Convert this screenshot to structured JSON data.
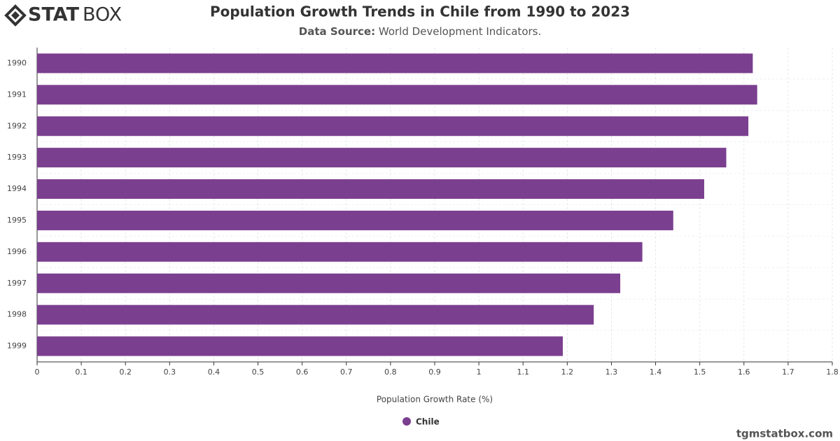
{
  "logo": {
    "bold": "STAT",
    "light": "BOX"
  },
  "footer": "tgmstatbox.com",
  "chart_data": {
    "type": "bar",
    "orientation": "horizontal",
    "title": "Population Growth Trends in Chile from 1990 to 2023",
    "subtitle": {
      "label": "Data Source:",
      "text": "World Development Indicators."
    },
    "x_label": "Population Growth Rate (%)",
    "categories": [
      "1990",
      "1991",
      "1992",
      "1993",
      "1994",
      "1995",
      "1996",
      "1997",
      "1998",
      "1999"
    ],
    "series": [
      {
        "name": "Chile",
        "color": "#7b3f8f",
        "values": [
          1.62,
          1.63,
          1.61,
          1.56,
          1.51,
          1.44,
          1.37,
          1.32,
          1.26,
          1.19
        ]
      }
    ],
    "xlim": [
      0,
      1.8
    ],
    "xticks": [
      0,
      0.1,
      0.2,
      0.3,
      0.4,
      0.5,
      0.6,
      0.7,
      0.8,
      0.9,
      1,
      1.1,
      1.2,
      1.3,
      1.4,
      1.5,
      1.6,
      1.7,
      1.8
    ],
    "grid": true
  }
}
